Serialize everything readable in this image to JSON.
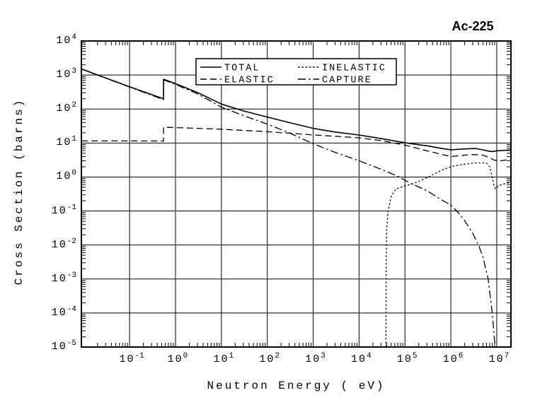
{
  "title": "Ac-225",
  "colors": {
    "line": "#000000",
    "background": "#ffffff"
  },
  "chart_data": {
    "type": "line",
    "title": "Ac-225",
    "xlabel": "Neutron Energy ( eV)",
    "ylabel": "Cross Section (barns)",
    "x_scale": "log",
    "y_scale": "log",
    "xlim": [
      0.0089,
      20400000
    ],
    "ylim": [
      1e-05,
      10000
    ],
    "x_tick_exponents": [
      -1,
      0,
      1,
      2,
      3,
      4,
      5,
      6,
      7
    ],
    "y_tick_exponents": [
      4,
      3,
      2,
      1,
      0,
      -1,
      -2,
      -3,
      -4,
      -5
    ],
    "grid": true,
    "legend_position": "top-center-inside",
    "legend_order": [
      "TOTAL",
      "INELASTIC",
      "ELASTIC",
      "CAPTURE"
    ],
    "series": [
      {
        "name": "TOTAL",
        "style": "solid",
        "points": [
          [
            0.009,
            1500
          ],
          [
            0.03,
            820
          ],
          [
            0.1,
            453
          ],
          [
            0.3,
            266
          ],
          [
            0.55,
            199
          ],
          [
            0.55,
            750
          ],
          [
            1,
            558
          ],
          [
            3,
            307
          ],
          [
            10,
            140
          ],
          [
            30,
            88
          ],
          [
            100,
            58
          ],
          [
            300,
            40
          ],
          [
            1000,
            27
          ],
          [
            3000,
            21
          ],
          [
            10000,
            17.2
          ],
          [
            30000,
            13.5
          ],
          [
            100000,
            10.2
          ],
          [
            200000,
            8.9
          ],
          [
            300000,
            8.3
          ],
          [
            600000,
            7.0
          ],
          [
            1000000,
            6.3
          ],
          [
            2000000,
            6.7
          ],
          [
            3500000,
            6.9
          ],
          [
            5000000,
            6.3
          ],
          [
            6500000,
            5.8
          ],
          [
            8000000,
            5.6
          ],
          [
            10000000,
            5.9
          ],
          [
            15000000,
            6.1
          ],
          [
            20000000,
            6.2
          ]
        ]
      },
      {
        "name": "ELASTIC",
        "style": "dashed",
        "points": [
          [
            0.009,
            11.5
          ],
          [
            0.1,
            11.5
          ],
          [
            0.55,
            11.4
          ],
          [
            0.55,
            29
          ],
          [
            1,
            28.5
          ],
          [
            3,
            27
          ],
          [
            10,
            25.5
          ],
          [
            30,
            23.5
          ],
          [
            100,
            21.5
          ],
          [
            300,
            19.5
          ],
          [
            1000,
            17.3
          ],
          [
            3000,
            15.8
          ],
          [
            10000,
            14.2
          ],
          [
            30000,
            11.8
          ],
          [
            100000,
            8.7
          ],
          [
            300000,
            5.9
          ],
          [
            1000000,
            4.0
          ],
          [
            2000000,
            4.4
          ],
          [
            3000000,
            4.6
          ],
          [
            5000000,
            4.4
          ],
          [
            7000000,
            3.7
          ],
          [
            9000000,
            3.1
          ],
          [
            12000000,
            3.0
          ],
          [
            20000000,
            3.3
          ]
        ]
      },
      {
        "name": "INELASTIC",
        "style": "dotted",
        "points": [
          [
            38500,
            1e-05
          ],
          [
            39000,
            0.003
          ],
          [
            40000,
            0.03
          ],
          [
            43000,
            0.1
          ],
          [
            50000,
            0.27
          ],
          [
            63000,
            0.44
          ],
          [
            100000,
            0.55
          ],
          [
            144000,
            0.62
          ],
          [
            200000,
            0.75
          ],
          [
            300000,
            0.95
          ],
          [
            500000,
            1.35
          ],
          [
            700000,
            1.7
          ],
          [
            1000000,
            2.0
          ],
          [
            1500000,
            2.25
          ],
          [
            2000000,
            2.4
          ],
          [
            3000000,
            2.55
          ],
          [
            4000000,
            2.6
          ],
          [
            5000000,
            2.6
          ],
          [
            6000000,
            2.55
          ],
          [
            7000000,
            2.0
          ],
          [
            8000000,
            1.0
          ],
          [
            8700000,
            0.55
          ],
          [
            9300000,
            0.45
          ],
          [
            11000000,
            0.55
          ],
          [
            14000000,
            0.62
          ],
          [
            20000000,
            0.7
          ]
        ]
      },
      {
        "name": "CAPTURE",
        "style": "dashdot",
        "points": [
          [
            0.009,
            1490
          ],
          [
            0.03,
            808
          ],
          [
            0.1,
            442
          ],
          [
            0.3,
            255
          ],
          [
            0.55,
            188
          ],
          [
            0.55,
            720
          ],
          [
            1,
            530
          ],
          [
            3,
            280
          ],
          [
            10,
            114
          ],
          [
            30,
            64
          ],
          [
            100,
            36
          ],
          [
            300,
            20
          ],
          [
            1000,
            9.5
          ],
          [
            3000,
            5.3
          ],
          [
            10000,
            3.0
          ],
          [
            30000,
            1.7
          ],
          [
            70000,
            1.05
          ],
          [
            100000,
            0.8
          ],
          [
            144000,
            0.62
          ],
          [
            300000,
            0.4
          ],
          [
            600000,
            0.22
          ],
          [
            1000000,
            0.15
          ],
          [
            1500000,
            0.085
          ],
          [
            2000000,
            0.052
          ],
          [
            3000000,
            0.022
          ],
          [
            4000000,
            0.01
          ],
          [
            5000000,
            0.0045
          ],
          [
            6500000,
            0.001
          ],
          [
            8000000,
            0.0001
          ],
          [
            9200000,
            1e-05
          ]
        ]
      }
    ]
  }
}
